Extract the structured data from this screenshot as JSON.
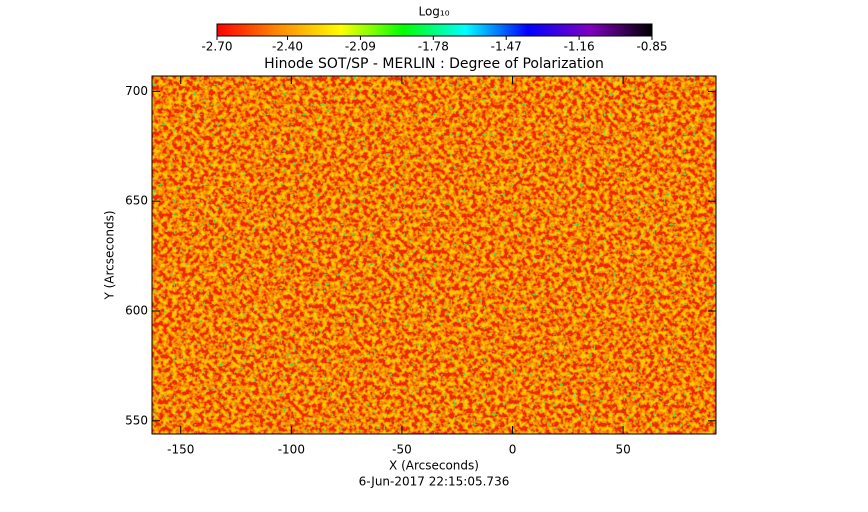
{
  "chart_data": {
    "type": "image",
    "title": "Hinode SOT/SP - MERLIN : Degree of Polarization",
    "x_label": "X (Arcseconds)",
    "y_label": "Y (Arcseconds)",
    "footer": "6-Jun-2017 22:15:05.736",
    "xlim": [
      -163,
      92
    ],
    "xticks": [
      -150,
      -100,
      -50,
      0,
      50
    ],
    "ylim": [
      544,
      707
    ],
    "yticks": [
      550,
      600,
      650,
      700
    ],
    "colorbar": {
      "label": "Log₁₀",
      "lim": [
        -2.7,
        -0.85
      ],
      "ticks": [
        {
          "value": -2.7,
          "label": "-2.70"
        },
        {
          "value": -2.4,
          "label": "-2.40"
        },
        {
          "value": -2.09,
          "label": "-2.09"
        },
        {
          "value": -1.78,
          "label": "-1.78"
        },
        {
          "value": -1.47,
          "label": "-1.47"
        },
        {
          "value": -1.16,
          "label": "-1.16"
        },
        {
          "value": -0.85,
          "label": "-0.85"
        }
      ],
      "colors": [
        "#ff0000",
        "#ff8c00",
        "#ffff00",
        "#00ff00",
        "#00ffff",
        "#0000ff",
        "#8000c0",
        "#000000"
      ]
    }
  }
}
